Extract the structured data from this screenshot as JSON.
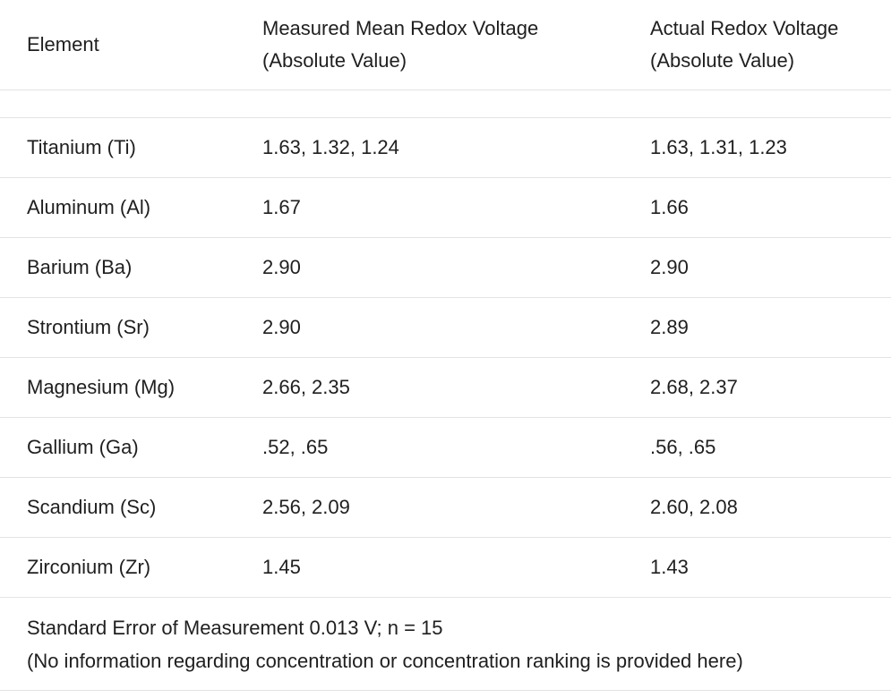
{
  "header": {
    "element": "Element",
    "measured_line1": "Measured Mean Redox Voltage",
    "measured_line2": "(Absolute Value)",
    "actual_line1": "Actual Redox Voltage",
    "actual_line2": "(Absolute Value)"
  },
  "rows": [
    {
      "element": "Titanium (Ti)",
      "measured": "1.63, 1.32, 1.24",
      "actual": "1.63, 1.31, 1.23"
    },
    {
      "element": "Aluminum (Al)",
      "measured": "1.67",
      "actual": "1.66"
    },
    {
      "element": "Barium (Ba)",
      "measured": "2.90",
      "actual": "2.90"
    },
    {
      "element": "Strontium (Sr)",
      "measured": "2.90",
      "actual": "2.89"
    },
    {
      "element": "Magnesium (Mg)",
      "measured": "2.66, 2.35",
      "actual": "2.68, 2.37"
    },
    {
      "element": "Gallium (Ga)",
      "measured": ".52, .65",
      "actual": ".56, .65"
    },
    {
      "element": "Scandium (Sc)",
      "measured": "2.56, 2.09",
      "actual": "2.60, 2.08"
    },
    {
      "element": "Zirconium (Zr)",
      "measured": "1.45",
      "actual": "1.43"
    }
  ],
  "footer": {
    "line1": "Standard Error of Measurement 0.013 V; n = 15",
    "line2": "(No information regarding concentration or concentration ranking is provided here)"
  }
}
